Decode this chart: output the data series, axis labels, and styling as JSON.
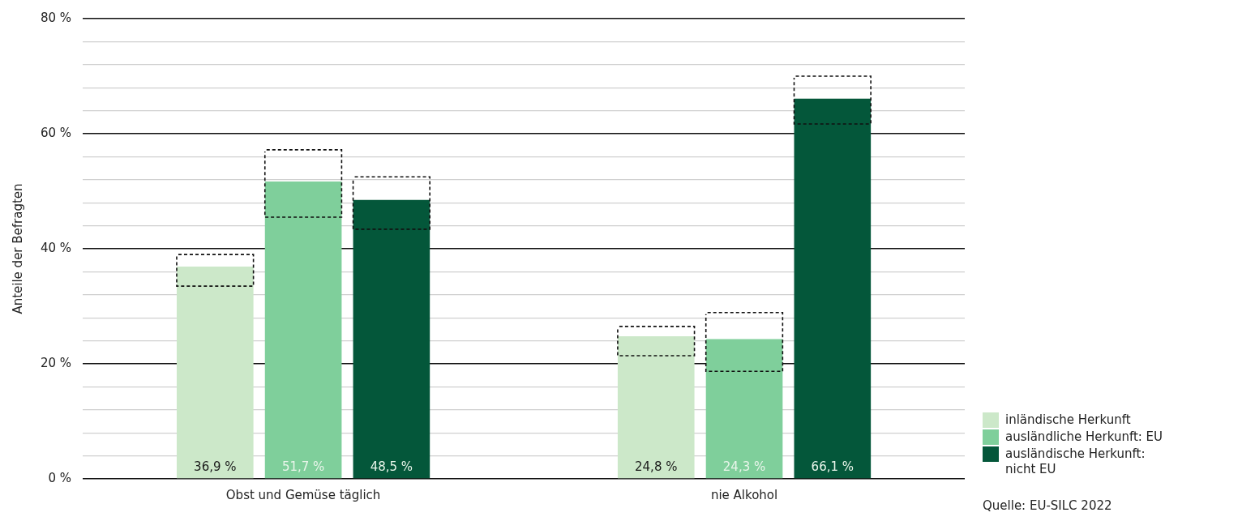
{
  "chart_data": {
    "type": "bar",
    "ylabel": "Anteile der Befragten",
    "categories": [
      "Obst und Gemüse täglich",
      "nie Alkohol"
    ],
    "series": [
      {
        "name": "inländische Herkunft",
        "color": "#cce8c9",
        "values": [
          36.9,
          24.8
        ],
        "value_labels": [
          "36,9 %",
          "24,8 %"
        ],
        "errors": [
          [
            33.5,
            39.0
          ],
          [
            21.4,
            26.5
          ]
        ]
      },
      {
        "name": "ausländliche Herkunft: EU",
        "color": "#7fcf9b",
        "values": [
          51.7,
          24.3
        ],
        "value_labels": [
          "51,7 %",
          "24,3 %"
        ],
        "errors": [
          [
            45.5,
            57.2
          ],
          [
            18.7,
            28.9
          ]
        ]
      },
      {
        "name": "ausländische Herkunft: nicht EU",
        "color": "#04573a",
        "values": [
          48.5,
          66.1
        ],
        "value_labels": [
          "48,5 %",
          "66,1 %"
        ],
        "errors": [
          [
            43.4,
            52.5
          ],
          [
            61.7,
            70.0
          ]
        ]
      }
    ],
    "ylim": [
      0,
      80
    ],
    "yticks": [
      {
        "value": 0,
        "label": "0 %"
      },
      {
        "value": 4,
        "label": null
      },
      {
        "value": 8,
        "label": null
      },
      {
        "value": 12,
        "label": null
      },
      {
        "value": 16,
        "label": null
      },
      {
        "value": 20,
        "label": "20 %"
      },
      {
        "value": 24,
        "label": null
      },
      {
        "value": 28,
        "label": null
      },
      {
        "value": 32,
        "label": null
      },
      {
        "value": 36,
        "label": null
      },
      {
        "value": 40,
        "label": "40 %"
      },
      {
        "value": 44,
        "label": null
      },
      {
        "value": 48,
        "label": null
      },
      {
        "value": 52,
        "label": null
      },
      {
        "value": 56,
        "label": null
      },
      {
        "value": 60,
        "label": "60 %"
      },
      {
        "value": 64,
        "label": null
      },
      {
        "value": 68,
        "label": null
      },
      {
        "value": 72,
        "label": null
      },
      {
        "value": 76,
        "label": null
      },
      {
        "value": 80,
        "label": "80 %"
      }
    ],
    "grid": "y",
    "legend": "right",
    "annotations": [
      "Quelle: EU-SILC 2022"
    ]
  }
}
